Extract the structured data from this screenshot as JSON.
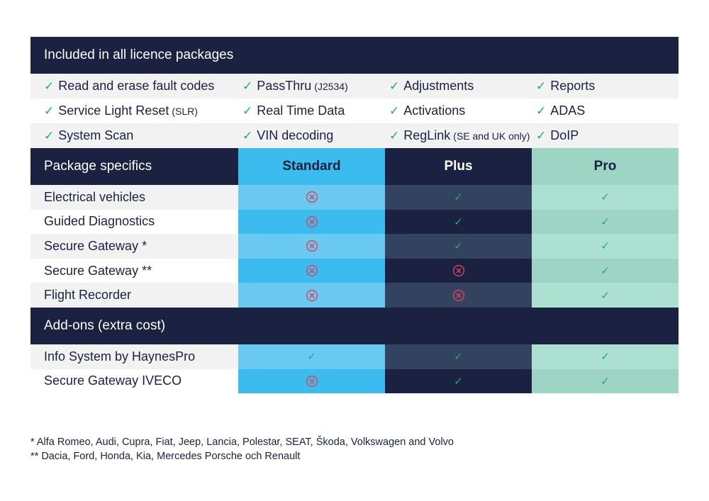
{
  "included": {
    "title": "Included in all licence packages",
    "rows": [
      [
        {
          "text": "Read and erase fault codes",
          "note": ""
        },
        {
          "text": "PassThru",
          "note": "(J2534)"
        },
        {
          "text": "Adjustments",
          "note": ""
        },
        {
          "text": "Reports",
          "note": ""
        }
      ],
      [
        {
          "text": "Service Light Reset",
          "note": "(SLR)"
        },
        {
          "text": "Real Time Data",
          "note": ""
        },
        {
          "text": "Activations",
          "note": ""
        },
        {
          "text": "ADAS",
          "note": ""
        }
      ],
      [
        {
          "text": "System Scan",
          "note": ""
        },
        {
          "text": "VIN decoding",
          "note": ""
        },
        {
          "text": "RegLink",
          "note": "(SE and UK only)"
        },
        {
          "text": "DoIP",
          "note": ""
        }
      ]
    ]
  },
  "specifics": {
    "title": "Package specifics",
    "columns": [
      "Standard",
      "Plus",
      "Pro"
    ],
    "rows": [
      {
        "label": "Electrical vehicles",
        "standard": false,
        "plus": true,
        "pro": true
      },
      {
        "label": "Guided Diagnostics",
        "standard": false,
        "plus": true,
        "pro": true
      },
      {
        "label": "Secure Gateway *",
        "standard": false,
        "plus": true,
        "pro": true
      },
      {
        "label": "Secure Gateway **",
        "standard": false,
        "plus": false,
        "pro": true
      },
      {
        "label": "Flight Recorder",
        "standard": false,
        "plus": false,
        "pro": true
      }
    ]
  },
  "addons": {
    "title": "Add-ons (extra cost)",
    "rows": [
      {
        "label": "Info System by HaynesPro",
        "standard": true,
        "plus": true,
        "pro": true
      },
      {
        "label": "Secure Gateway IVECO",
        "standard": false,
        "plus": true,
        "pro": true
      }
    ]
  },
  "footnotes": [
    "*   Alfa Romeo, Audi, Cupra, Fiat, Jeep, Lancia, Polestar, SEAT, Škoda, Volkswagen and Volvo",
    "** Dacia, Ford, Honda, Kia, Mercedes Porsche och Renault"
  ],
  "colors": {
    "navy": "#1b2140",
    "standard": "#3cbcee",
    "pro": "#9ed4c4",
    "check": "#1faa77",
    "cross": "#e0405f"
  },
  "icons": {
    "yes": "check-icon",
    "no": "cross-circle-icon"
  }
}
